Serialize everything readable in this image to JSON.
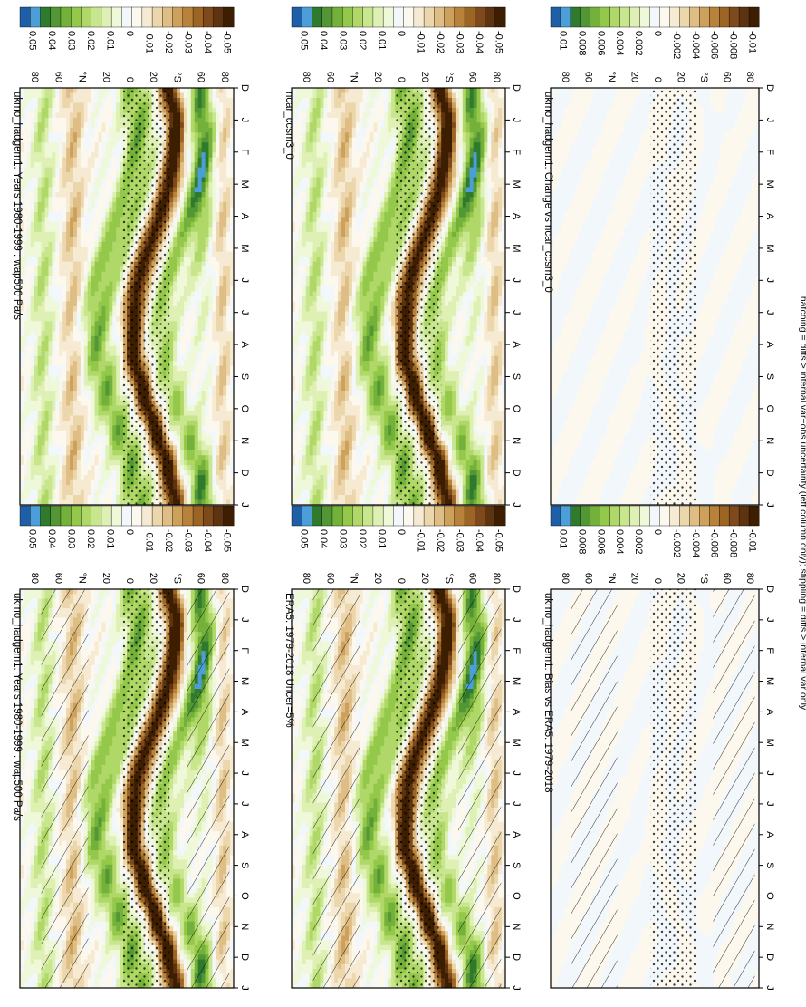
{
  "footnote": "hatching = diffs > internal var+obs uncertainty (left column only); stippling = diffs > internal var only",
  "colors": {
    "negative_ramp": [
      "#3d1e00",
      "#5e3310",
      "#7e4a1c",
      "#9c6524",
      "#b8823a",
      "#cda15b",
      "#dfbe85",
      "#ecd6ab",
      "#f6ead2",
      "#fdf8ee"
    ],
    "positive_ramp": [
      "#f2f7fb",
      "#eff8d8",
      "#def0b3",
      "#c8e68d",
      "#b0d868",
      "#94c84b",
      "#74b13a",
      "#529636",
      "#2f7a2c",
      "#4b9ed7",
      "#1e5fa8"
    ]
  },
  "chart_data": [
    {
      "id": "top-left",
      "type": "heatmap",
      "title": "ukmo_hadgem1: Years 1980-1999 : wap500 Pa/s",
      "x_ticks": [
        "D",
        "J",
        "F",
        "M",
        "A",
        "M",
        "J",
        "J",
        "A",
        "S",
        "O",
        "N",
        "D",
        "J"
      ],
      "y_ticks": [
        "80",
        "60",
        "°N",
        "20",
        "0",
        "20",
        "°S",
        "60",
        "80"
      ],
      "colorbar_ticks": [
        "0.05",
        "0.04",
        "0.03",
        "0.02",
        "0.01",
        "0",
        "-0.01",
        "-0.02",
        "-0.03",
        "-0.04",
        "-0.05"
      ],
      "variant": "clim",
      "hatching": true,
      "stippling": true
    },
    {
      "id": "top-right",
      "type": "heatmap",
      "title": "ukmo_hadgem1: Years 1980-1999 : wap500 Pa/s",
      "x_ticks": [
        "D",
        "J",
        "F",
        "M",
        "A",
        "M",
        "J",
        "J",
        "A",
        "S",
        "O",
        "N",
        "D",
        "J"
      ],
      "y_ticks": [
        "80",
        "60",
        "°N",
        "20",
        "0",
        "20",
        "°S",
        "60",
        "80"
      ],
      "colorbar_ticks": [
        "0.05",
        "0.04",
        "0.03",
        "0.02",
        "0.01",
        "0",
        "-0.01",
        "-0.02",
        "-0.03",
        "-0.04",
        "-0.05"
      ],
      "variant": "clim",
      "hatching": false,
      "stippling": true
    },
    {
      "id": "middle-left",
      "type": "heatmap",
      "title": "ERA5: 1979-2018 Uncer=5%",
      "x_ticks": [
        "D",
        "J",
        "F",
        "M",
        "A",
        "M",
        "J",
        "J",
        "A",
        "S",
        "O",
        "N",
        "D",
        "J"
      ],
      "y_ticks": [
        "80",
        "60",
        "°N",
        "20",
        "0",
        "20",
        "°S",
        "60",
        "80"
      ],
      "colorbar_ticks": [
        "0.05",
        "0.04",
        "0.03",
        "0.02",
        "0.01",
        "0",
        "-0.01",
        "-0.02",
        "-0.03",
        "-0.04",
        "-0.05"
      ],
      "variant": "clim",
      "hatching": true,
      "stippling": true
    },
    {
      "id": "middle-right",
      "type": "heatmap",
      "title": "ncar_ccsm3_0",
      "x_ticks": [
        "D",
        "J",
        "F",
        "M",
        "A",
        "M",
        "J",
        "J",
        "A",
        "S",
        "O",
        "N",
        "D",
        "J"
      ],
      "y_ticks": [
        "80",
        "60",
        "°N",
        "20",
        "0",
        "20",
        "°S",
        "60",
        "80"
      ],
      "colorbar_ticks": [
        "0.05",
        "0.04",
        "0.03",
        "0.02",
        "0.01",
        "0",
        "-0.01",
        "-0.02",
        "-0.03",
        "-0.04",
        "-0.05"
      ],
      "variant": "clim",
      "hatching": false,
      "stippling": true
    },
    {
      "id": "bottom-left",
      "type": "heatmap",
      "title": "ukmo_hadgem1: Bias vs ERA5: 1979-2018",
      "x_ticks": [
        "D",
        "J",
        "F",
        "M",
        "A",
        "M",
        "J",
        "J",
        "A",
        "S",
        "O",
        "N",
        "D",
        "J"
      ],
      "y_ticks": [
        "80",
        "60",
        "°N",
        "20",
        "0",
        "20",
        "°S",
        "60",
        "80"
      ],
      "colorbar_ticks": [
        "0.01",
        "0.008",
        "0.006",
        "0.004",
        "0.002",
        "0",
        "-0.002",
        "-0.004",
        "-0.006",
        "-0.008",
        "-0.01"
      ],
      "variant": "diff",
      "hatching": true,
      "stippling": true
    },
    {
      "id": "bottom-right",
      "type": "heatmap",
      "title": "ukmo_hadgem1: Change vs ncar_ccsm3_0",
      "x_ticks": [
        "D",
        "J",
        "F",
        "M",
        "A",
        "M",
        "J",
        "J",
        "A",
        "S",
        "O",
        "N",
        "D",
        "J"
      ],
      "y_ticks": [
        "80",
        "60",
        "°N",
        "20",
        "0",
        "20",
        "°S",
        "60",
        "80"
      ],
      "colorbar_ticks": [
        "0.01",
        "0.008",
        "0.006",
        "0.004",
        "0.002",
        "0",
        "-0.002",
        "-0.004",
        "-0.006",
        "-0.008",
        "-0.01"
      ],
      "variant": "diff",
      "hatching": false,
      "stippling": true
    }
  ]
}
